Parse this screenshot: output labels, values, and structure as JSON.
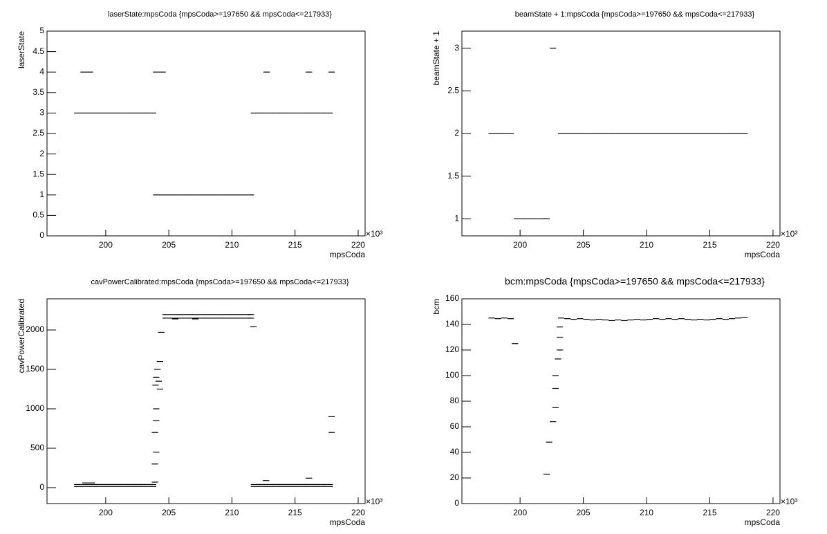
{
  "chart_data": [
    {
      "type": "scatter",
      "title": "laserState:mpsCoda {mpsCoda>=197650 && mpsCoda<=217933}",
      "x_label": "mpsCoda",
      "y_label": "laserState",
      "x_exponent": "×10³",
      "color": "#000000",
      "x": [
        197.75,
        198.25,
        198.75,
        199.25,
        199.75,
        200.25,
        200.75,
        201.25,
        201.75,
        202.25,
        202.75,
        203.25,
        203.75,
        204.0,
        204.5,
        205.0,
        205.5,
        206.0,
        206.5,
        207.0,
        207.5,
        208.0,
        208.5,
        209.0,
        209.5,
        210.0,
        210.5,
        211.0,
        211.5,
        211.75,
        212.25,
        212.75,
        213.25,
        213.75,
        214.25,
        214.75,
        215.25,
        215.75,
        216.25,
        216.75,
        217.25,
        217.75,
        198.25,
        198.75,
        204.0,
        204.5,
        212.75,
        216.1,
        217.9
      ],
      "values": [
        3,
        3,
        3,
        3,
        3,
        3,
        3,
        3,
        3,
        3,
        3,
        3,
        3,
        1,
        1,
        1,
        1,
        1,
        1,
        1,
        1,
        1,
        1,
        1,
        1,
        1,
        1,
        1,
        1,
        3,
        3,
        3,
        3,
        3,
        3,
        3,
        3,
        3,
        3,
        3,
        3,
        3,
        4,
        4,
        4,
        4,
        4,
        4,
        4
      ],
      "xlim": [
        195.35,
        220.55
      ],
      "xticks": [
        200,
        205,
        210,
        215,
        220
      ],
      "ylim": [
        0,
        5
      ],
      "yticks": [
        0,
        0.5,
        1,
        1.5,
        2,
        2.5,
        3,
        3.5,
        4,
        4.5,
        5
      ]
    },
    {
      "type": "scatter",
      "title": "beamState + 1:mpsCoda {mpsCoda>=197650 && mpsCoda<=217933}",
      "x_label": "mpsCoda",
      "y_label": "beamState + 1",
      "x_exponent": "×10³",
      "color": "#000000",
      "x": [
        197.75,
        198.25,
        198.75,
        199.25,
        199.75,
        200.25,
        200.75,
        201.25,
        201.75,
        202.1,
        202.6,
        203.25,
        203.75,
        204.25,
        204.75,
        205.25,
        205.75,
        206.25,
        206.75,
        207.25,
        207.75,
        208.25,
        208.75,
        209.25,
        209.75,
        210.25,
        210.75,
        211.25,
        211.75,
        212.25,
        212.75,
        213.25,
        213.75,
        214.25,
        214.75,
        215.25,
        215.75,
        216.25,
        216.75,
        217.25,
        217.75
      ],
      "values": [
        2,
        2,
        2,
        2,
        1,
        1,
        1,
        1,
        1,
        1,
        3,
        2,
        2,
        2,
        2,
        2,
        2,
        2,
        2,
        2,
        2,
        2,
        2,
        2,
        2,
        2,
        2,
        2,
        2,
        2,
        2,
        2,
        2,
        2,
        2,
        2,
        2,
        2,
        2,
        2,
        2
      ],
      "xlim": [
        195.4,
        220.55
      ],
      "xticks": [
        200,
        205,
        210,
        215,
        220
      ],
      "ylim": [
        0.8,
        3.2
      ],
      "yticks": [
        1,
        1.5,
        2,
        2.5,
        3
      ]
    },
    {
      "type": "scatter",
      "title": "cavPowerCalibrated:mpsCoda {mpsCoda>=197650 && mpsCoda<=217933}",
      "x_label": "mpsCoda",
      "y_label": "cavPowerCalibrated",
      "x_exponent": "×10³",
      "color": "#000000",
      "x": [
        197.75,
        198.25,
        198.75,
        199.25,
        199.75,
        200.25,
        200.75,
        201.25,
        201.75,
        202.25,
        202.75,
        203.25,
        203.75,
        197.75,
        198.25,
        198.75,
        199.25,
        199.75,
        200.25,
        200.75,
        201.25,
        201.75,
        202.25,
        202.75,
        203.25,
        203.75,
        204.75,
        205.25,
        205.75,
        206.25,
        206.75,
        207.25,
        207.75,
        208.25,
        208.75,
        209.25,
        209.75,
        210.25,
        210.75,
        211.25,
        211.5,
        204.75,
        205.25,
        205.75,
        206.25,
        206.75,
        207.25,
        207.75,
        208.25,
        208.75,
        209.25,
        209.75,
        210.25,
        210.75,
        211.25,
        211.5,
        211.75,
        212.25,
        212.75,
        213.25,
        213.75,
        214.25,
        214.75,
        215.25,
        215.75,
        216.25,
        216.75,
        217.25,
        217.75,
        211.75,
        212.25,
        212.75,
        213.25,
        213.75,
        214.25,
        214.75,
        215.25,
        215.75,
        216.25,
        216.75,
        217.25,
        217.75,
        198.4,
        198.9,
        203.9,
        203.9,
        204.0,
        203.9,
        204.0,
        204.0,
        203.95,
        204.0,
        204.1,
        204.2,
        204.3,
        204.3,
        204.4,
        211.7,
        212.7,
        216.1,
        217.9,
        217.9,
        205.5,
        207.1
      ],
      "values": [
        15,
        15,
        15,
        15,
        15,
        15,
        15,
        15,
        15,
        15,
        15,
        15,
        15,
        40,
        40,
        40,
        40,
        40,
        40,
        40,
        40,
        40,
        40,
        40,
        40,
        40,
        2150,
        2150,
        2150,
        2150,
        2150,
        2150,
        2150,
        2150,
        2150,
        2150,
        2150,
        2150,
        2150,
        2150,
        2150,
        2195,
        2195,
        2195,
        2195,
        2195,
        2195,
        2195,
        2195,
        2195,
        2195,
        2195,
        2195,
        2195,
        2195,
        2195,
        15,
        15,
        15,
        15,
        15,
        15,
        15,
        15,
        15,
        15,
        15,
        15,
        15,
        40,
        40,
        40,
        40,
        40,
        40,
        40,
        40,
        40,
        40,
        40,
        40,
        40,
        60,
        60,
        70,
        300,
        450,
        700,
        850,
        1000,
        1300,
        1400,
        1500,
        1350,
        1250,
        1600,
        1970,
        2040,
        90,
        120,
        700,
        900,
        2140,
        2140
      ],
      "xlim": [
        195.35,
        220.55
      ],
      "xticks": [
        200,
        205,
        210,
        215,
        220
      ],
      "ylim": [
        -202,
        2395
      ],
      "yticks": [
        0,
        500,
        1000,
        1500,
        2000
      ]
    },
    {
      "type": "scatter",
      "title": "bcm:mpsCoda {mpsCoda>=197650 && mpsCoda<=217933}",
      "x_label": "mpsCoda",
      "y_label": "bcm",
      "x_exponent": "×10³",
      "color": "#000000",
      "x": [
        197.75,
        198.25,
        198.75,
        199.25,
        199.6,
        202.1,
        202.3,
        202.6,
        202.8,
        202.8,
        202.8,
        203.0,
        203.15,
        203.15,
        203.15,
        203.25,
        203.75,
        204.25,
        204.75,
        205.25,
        205.75,
        206.25,
        206.75,
        207.25,
        207.75,
        208.25,
        208.75,
        209.25,
        209.75,
        210.25,
        210.75,
        211.25,
        211.75,
        212.25,
        212.75,
        213.25,
        213.75,
        214.25,
        214.75,
        215.25,
        215.75,
        216.25,
        216.75,
        217.25,
        217.75
      ],
      "values": [
        145,
        144.5,
        145,
        144.5,
        125,
        23,
        48,
        64,
        75,
        90,
        100,
        113,
        120,
        130,
        138,
        145,
        144.5,
        144,
        144.5,
        144,
        143.5,
        144,
        143.5,
        143,
        143.5,
        143,
        143.5,
        144,
        143.5,
        144,
        144.5,
        144,
        144.5,
        144,
        144.5,
        144,
        143.5,
        144,
        143.5,
        144,
        144.5,
        144,
        144.5,
        145,
        145.5
      ],
      "xlim": [
        195.4,
        220.55
      ],
      "xticks": [
        200,
        205,
        210,
        215,
        220
      ],
      "ylim": [
        0,
        160
      ],
      "yticks": [
        0,
        20,
        40,
        60,
        80,
        100,
        120,
        140,
        160
      ]
    }
  ]
}
